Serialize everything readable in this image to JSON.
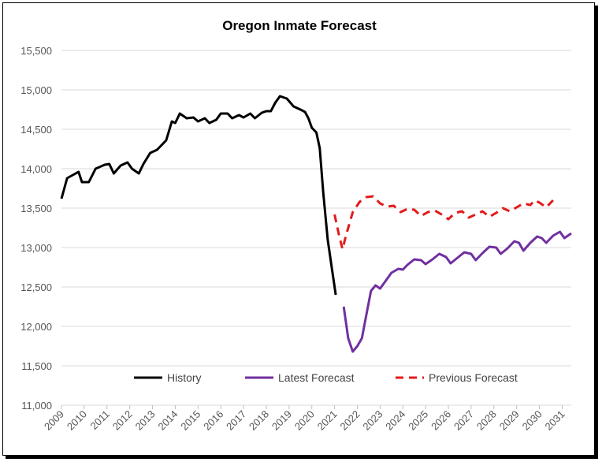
{
  "chart_data": {
    "type": "line",
    "title": "Oregon Inmate Forecast",
    "xlabel": "",
    "ylabel": "",
    "ylim": [
      11000,
      15500
    ],
    "xlim": [
      2009,
      2031.4
    ],
    "yticks": [
      "11,000",
      "11,500",
      "12,000",
      "12,500",
      "13,000",
      "13,500",
      "14,000",
      "14,500",
      "15,000",
      "15,500"
    ],
    "ytick_values": [
      11000,
      11500,
      12000,
      12500,
      13000,
      13500,
      14000,
      14500,
      15000,
      15500
    ],
    "xticks": [
      "2009",
      "2010",
      "2011",
      "2012",
      "2013",
      "2014",
      "2015",
      "2016",
      "2017",
      "2018",
      "2019",
      "2020",
      "2021",
      "2022",
      "2023",
      "2024",
      "2025",
      "2026",
      "2027",
      "2028",
      "2029",
      "2030",
      "2031"
    ],
    "xtick_values": [
      2009,
      2010,
      2011,
      2012,
      2013,
      2014,
      2015,
      2016,
      2017,
      2018,
      2019,
      2020,
      2021,
      2022,
      2023,
      2024,
      2025,
      2026,
      2027,
      2028,
      2029,
      2030,
      2031
    ],
    "grid": "horizontal",
    "legend": "bottom",
    "series": [
      {
        "name": "History",
        "color": "#000000",
        "style": "solid",
        "points": [
          [
            2009.0,
            13620
          ],
          [
            2009.25,
            13880
          ],
          [
            2009.5,
            13920
          ],
          [
            2009.75,
            13960
          ],
          [
            2009.9,
            13830
          ],
          [
            2010.2,
            13830
          ],
          [
            2010.5,
            14000
          ],
          [
            2010.9,
            14050
          ],
          [
            2011.1,
            14060
          ],
          [
            2011.3,
            13940
          ],
          [
            2011.6,
            14040
          ],
          [
            2011.9,
            14080
          ],
          [
            2012.1,
            14000
          ],
          [
            2012.4,
            13940
          ],
          [
            2012.6,
            14060
          ],
          [
            2012.9,
            14200
          ],
          [
            2013.2,
            14240
          ],
          [
            2013.6,
            14360
          ],
          [
            2013.85,
            14600
          ],
          [
            2014.0,
            14580
          ],
          [
            2014.2,
            14700
          ],
          [
            2014.5,
            14640
          ],
          [
            2014.8,
            14650
          ],
          [
            2015.0,
            14600
          ],
          [
            2015.3,
            14640
          ],
          [
            2015.5,
            14580
          ],
          [
            2015.8,
            14620
          ],
          [
            2016.0,
            14700
          ],
          [
            2016.3,
            14700
          ],
          [
            2016.5,
            14640
          ],
          [
            2016.8,
            14680
          ],
          [
            2017.0,
            14650
          ],
          [
            2017.3,
            14700
          ],
          [
            2017.5,
            14640
          ],
          [
            2017.8,
            14710
          ],
          [
            2018.0,
            14730
          ],
          [
            2018.2,
            14730
          ],
          [
            2018.4,
            14840
          ],
          [
            2018.6,
            14920
          ],
          [
            2018.9,
            14890
          ],
          [
            2019.2,
            14790
          ],
          [
            2019.5,
            14750
          ],
          [
            2019.7,
            14720
          ],
          [
            2019.85,
            14640
          ],
          [
            2020.0,
            14520
          ],
          [
            2020.2,
            14460
          ],
          [
            2020.35,
            14260
          ],
          [
            2020.5,
            13700
          ],
          [
            2020.7,
            13100
          ],
          [
            2020.9,
            12700
          ],
          [
            2021.05,
            12400
          ]
        ]
      },
      {
        "name": "Latest Forecast",
        "color": "#7030a0",
        "style": "solid",
        "points": [
          [
            2021.4,
            12250
          ],
          [
            2021.6,
            11850
          ],
          [
            2021.8,
            11680
          ],
          [
            2022.0,
            11750
          ],
          [
            2022.2,
            11850
          ],
          [
            2022.4,
            12150
          ],
          [
            2022.6,
            12450
          ],
          [
            2022.8,
            12520
          ],
          [
            2023.0,
            12480
          ],
          [
            2023.2,
            12560
          ],
          [
            2023.5,
            12680
          ],
          [
            2023.8,
            12730
          ],
          [
            2024.0,
            12720
          ],
          [
            2024.2,
            12780
          ],
          [
            2024.5,
            12850
          ],
          [
            2024.8,
            12840
          ],
          [
            2025.0,
            12790
          ],
          [
            2025.3,
            12850
          ],
          [
            2025.6,
            12920
          ],
          [
            2025.9,
            12880
          ],
          [
            2026.1,
            12800
          ],
          [
            2026.4,
            12870
          ],
          [
            2026.7,
            12940
          ],
          [
            2027.0,
            12920
          ],
          [
            2027.2,
            12840
          ],
          [
            2027.5,
            12930
          ],
          [
            2027.8,
            13010
          ],
          [
            2028.1,
            13000
          ],
          [
            2028.3,
            12920
          ],
          [
            2028.6,
            12990
          ],
          [
            2028.9,
            13080
          ],
          [
            2029.1,
            13060
          ],
          [
            2029.3,
            12960
          ],
          [
            2029.6,
            13060
          ],
          [
            2029.9,
            13140
          ],
          [
            2030.1,
            13120
          ],
          [
            2030.3,
            13060
          ],
          [
            2030.6,
            13150
          ],
          [
            2030.9,
            13200
          ],
          [
            2031.1,
            13120
          ],
          [
            2031.4,
            13180
          ]
        ]
      },
      {
        "name": "Previous Forecast",
        "color": "#e31a1c",
        "style": "dashed",
        "points": [
          [
            2021.0,
            13420
          ],
          [
            2021.2,
            13150
          ],
          [
            2021.35,
            12980
          ],
          [
            2021.5,
            13150
          ],
          [
            2021.8,
            13450
          ],
          [
            2022.1,
            13580
          ],
          [
            2022.4,
            13640
          ],
          [
            2022.7,
            13650
          ],
          [
            2023.0,
            13560
          ],
          [
            2023.3,
            13520
          ],
          [
            2023.6,
            13530
          ],
          [
            2023.9,
            13450
          ],
          [
            2024.2,
            13490
          ],
          [
            2024.5,
            13480
          ],
          [
            2024.8,
            13400
          ],
          [
            2025.1,
            13450
          ],
          [
            2025.4,
            13470
          ],
          [
            2025.7,
            13420
          ],
          [
            2026.0,
            13360
          ],
          [
            2026.3,
            13440
          ],
          [
            2026.6,
            13460
          ],
          [
            2026.9,
            13380
          ],
          [
            2027.2,
            13420
          ],
          [
            2027.5,
            13460
          ],
          [
            2027.8,
            13390
          ],
          [
            2028.1,
            13440
          ],
          [
            2028.4,
            13500
          ],
          [
            2028.7,
            13460
          ],
          [
            2029.0,
            13510
          ],
          [
            2029.3,
            13560
          ],
          [
            2029.6,
            13540
          ],
          [
            2029.8,
            13600
          ],
          [
            2030.0,
            13570
          ],
          [
            2030.3,
            13510
          ],
          [
            2030.6,
            13600
          ]
        ]
      }
    ]
  }
}
